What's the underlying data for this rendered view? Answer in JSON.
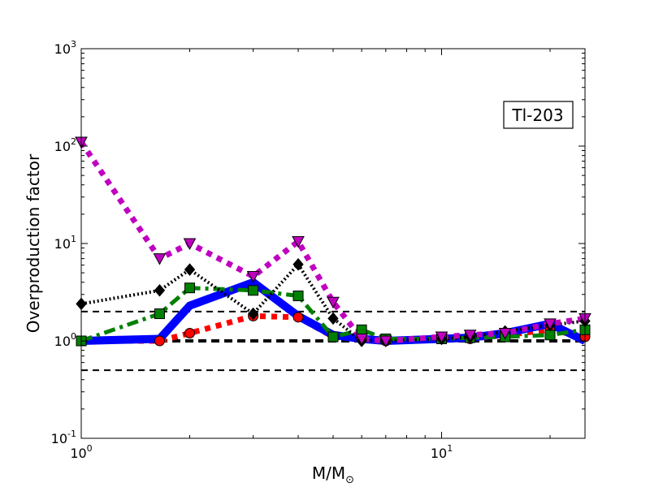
{
  "chart_data": {
    "type": "line",
    "xscale": "log",
    "yscale": "log",
    "xlim": [
      1,
      25
    ],
    "ylim": [
      0.1,
      1000
    ],
    "xlabel": "M/M",
    "xlabel_sub": "⊙",
    "ylabel": "Overproduction factor",
    "annotation": "Tl-203",
    "x_ticks": [
      {
        "value": 1,
        "base": "10",
        "exp": "0"
      },
      {
        "value": 10,
        "base": "10",
        "exp": "1"
      }
    ],
    "y_ticks": [
      {
        "value": 0.1,
        "base": "10",
        "exp": "-1"
      },
      {
        "value": 1,
        "base": "10",
        "exp": "0"
      },
      {
        "value": 10,
        "base": "10",
        "exp": "1"
      },
      {
        "value": 100,
        "base": "10",
        "exp": "2"
      },
      {
        "value": 1000,
        "base": "10",
        "exp": "3"
      }
    ],
    "reference_lines": [
      {
        "y": 0.5,
        "color": "#000000",
        "style": "dashed",
        "weight": "thin"
      },
      {
        "y": 1.0,
        "color": "#000000",
        "style": "dashed",
        "weight": "thick"
      },
      {
        "y": 2.0,
        "color": "#000000",
        "style": "dashed",
        "weight": "thin"
      }
    ],
    "series": [
      {
        "color": "#ff0000",
        "style": "dotted",
        "marker": "circle",
        "points": [
          [
            1.0,
            1.0
          ],
          [
            1.65,
            1.0
          ],
          [
            2.0,
            1.2
          ],
          [
            3.0,
            1.8
          ],
          [
            4.0,
            1.75
          ],
          [
            5.0,
            1.1
          ],
          [
            6.0,
            1.05
          ],
          [
            7.0,
            1.0
          ],
          [
            10.0,
            1.05
          ],
          [
            12.0,
            1.05
          ],
          [
            15.0,
            1.15
          ],
          [
            20.0,
            1.3
          ],
          [
            25.0,
            1.1
          ]
        ]
      },
      {
        "color": "#0000ff",
        "style": "solid",
        "marker": "none",
        "points": [
          [
            1.0,
            1.0
          ],
          [
            1.65,
            1.05
          ],
          [
            2.0,
            2.3
          ],
          [
            3.0,
            4.0
          ],
          [
            4.0,
            1.8
          ],
          [
            5.0,
            1.15
          ],
          [
            6.0,
            1.05
          ],
          [
            7.0,
            1.0
          ],
          [
            10.0,
            1.05
          ],
          [
            12.0,
            1.08
          ],
          [
            15.0,
            1.2
          ],
          [
            20.0,
            1.5
          ],
          [
            25.0,
            1.0
          ]
        ]
      },
      {
        "color": "#008000",
        "style": "dashdot",
        "marker": "square",
        "points": [
          [
            1.0,
            1.0
          ],
          [
            1.65,
            1.9
          ],
          [
            2.0,
            3.5
          ],
          [
            3.0,
            3.3
          ],
          [
            4.0,
            2.9
          ],
          [
            5.0,
            1.1
          ],
          [
            6.0,
            1.3
          ],
          [
            7.0,
            1.05
          ],
          [
            10.0,
            1.05
          ],
          [
            12.0,
            1.08
          ],
          [
            15.0,
            1.1
          ],
          [
            20.0,
            1.15
          ],
          [
            25.0,
            1.3
          ]
        ]
      },
      {
        "color": "#000000",
        "style": "dotted",
        "marker": "diamond",
        "points": [
          [
            1.0,
            2.4
          ],
          [
            1.65,
            3.3
          ],
          [
            2.0,
            5.4
          ],
          [
            3.0,
            1.9
          ],
          [
            4.0,
            6.1
          ],
          [
            5.0,
            1.7
          ],
          [
            6.0,
            1.0
          ],
          [
            7.0,
            1.0
          ],
          [
            10.0,
            1.05
          ],
          [
            12.0,
            1.1
          ],
          [
            15.0,
            1.25
          ],
          [
            20.0,
            1.45
          ],
          [
            25.0,
            1.6
          ]
        ]
      },
      {
        "color": "#bf00bf",
        "style": "dotted",
        "marker": "triangle-down",
        "points": [
          [
            1.0,
            110
          ],
          [
            1.65,
            7.0
          ],
          [
            2.0,
            10.0
          ],
          [
            3.0,
            4.6
          ],
          [
            4.0,
            10.5
          ],
          [
            5.0,
            2.5
          ],
          [
            6.0,
            1.05
          ],
          [
            7.0,
            1.0
          ],
          [
            10.0,
            1.1
          ],
          [
            12.0,
            1.15
          ],
          [
            15.0,
            1.2
          ],
          [
            20.0,
            1.5
          ],
          [
            25.0,
            1.7
          ]
        ]
      }
    ]
  }
}
